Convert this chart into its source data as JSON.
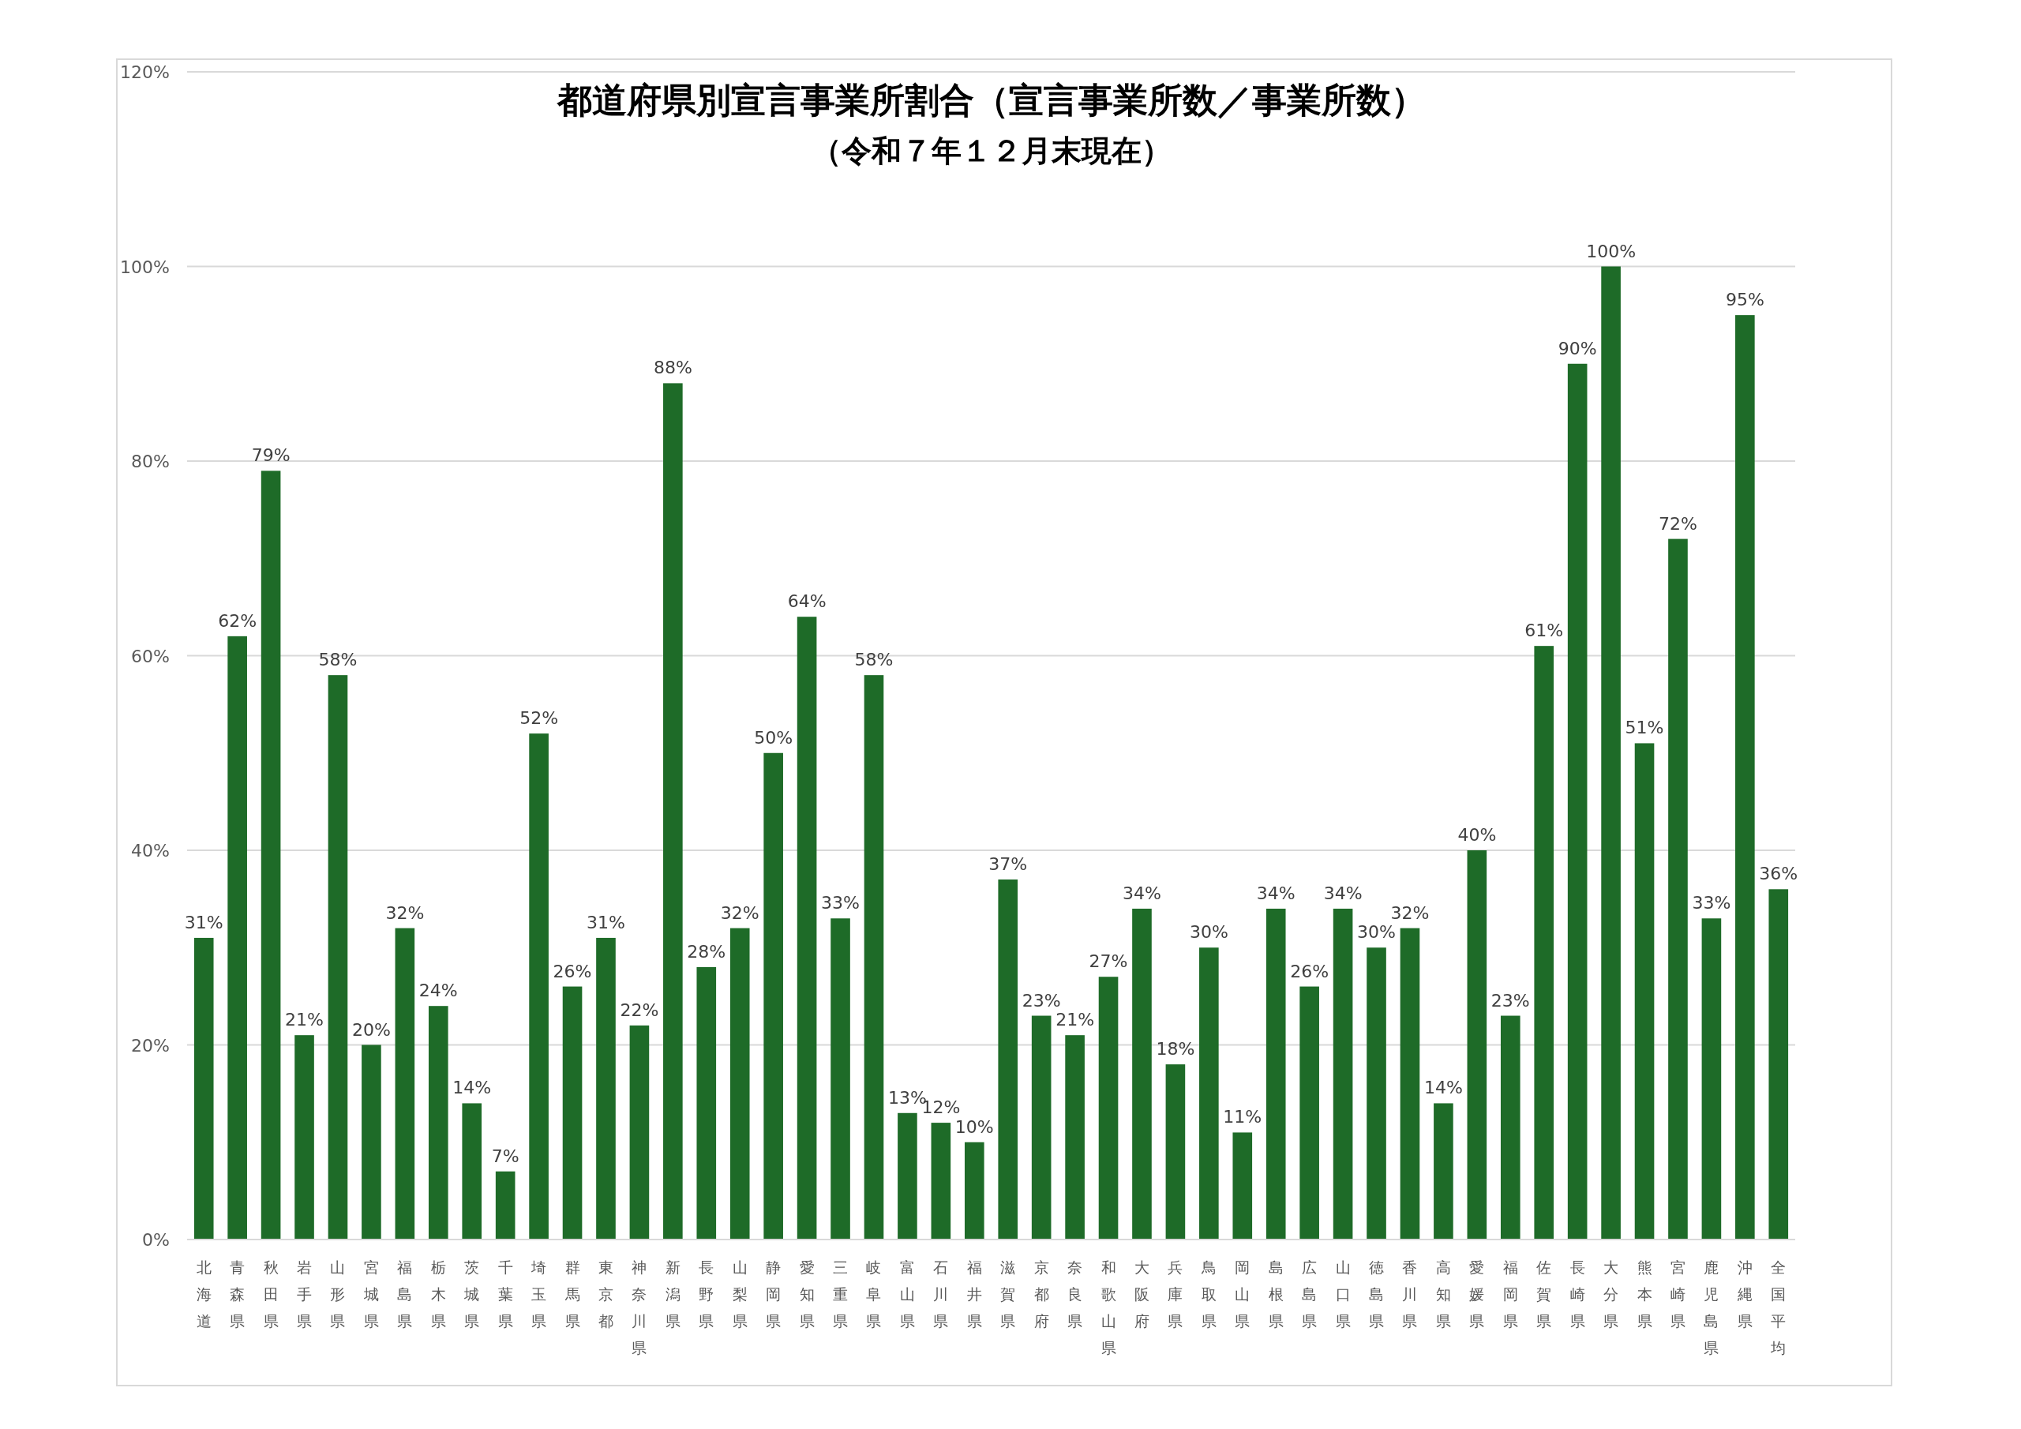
{
  "chart_data": {
    "type": "bar",
    "title": "都道府県別宣言事業所割合（宣言事業所数／事業所数）",
    "subtitle": "（令和７年１２月末現在）",
    "categories": [
      "北海道",
      "青森県",
      "秋田県",
      "岩手県",
      "山形県",
      "宮城県",
      "福島県",
      "栃木県",
      "茨城県",
      "千葉県",
      "埼玉県",
      "群馬県",
      "東京都",
      "神奈川県",
      "新潟県",
      "長野県",
      "山梨県",
      "静岡県",
      "愛知県",
      "三重県",
      "岐阜県",
      "富山県",
      "石川県",
      "福井県",
      "滋賀県",
      "京都府",
      "奈良県",
      "和歌山県",
      "大阪府",
      "兵庫県",
      "鳥取県",
      "岡山県",
      "島根県",
      "広島県",
      "山口県",
      "徳島県",
      "香川県",
      "高知県",
      "愛媛県",
      "福岡県",
      "佐賀県",
      "長崎県",
      "大分県",
      "熊本県",
      "宮崎県",
      "鹿児島県",
      "沖縄県",
      "全国平均"
    ],
    "values": [
      31,
      62,
      79,
      21,
      58,
      20,
      32,
      24,
      14,
      7,
      52,
      26,
      31,
      22,
      88,
      28,
      32,
      50,
      64,
      33,
      58,
      13,
      12,
      10,
      37,
      23,
      21,
      27,
      34,
      18,
      30,
      11,
      34,
      26,
      34,
      30,
      32,
      14,
      40,
      23,
      61,
      90,
      100,
      51,
      72,
      33,
      95,
      36
    ],
    "value_labels": [
      "31%",
      "62%",
      "79%",
      "21%",
      "58%",
      "20%",
      "32%",
      "24%",
      "14%",
      "7%",
      "52%",
      "26%",
      "31%",
      "22%",
      "88%",
      "28%",
      "32%",
      "50%",
      "64%",
      "33%",
      "58%",
      "13%",
      "12%",
      "10%",
      "37%",
      "23%",
      "21%",
      "27%",
      "34%",
      "18%",
      "30%",
      "11%",
      "34%",
      "26%",
      "34%",
      "30%",
      "32%",
      "14%",
      "40%",
      "23%",
      "61%",
      "90%",
      "100%",
      "51%",
      "72%",
      "33%",
      "95%",
      "36%"
    ],
    "color": "#1e6b28",
    "ylim": [
      0,
      120
    ],
    "yticks": [
      {
        "value": 0,
        "label": "0%"
      },
      {
        "value": 20,
        "label": "20%"
      },
      {
        "value": 40,
        "label": "40%"
      },
      {
        "value": 60,
        "label": "60%"
      },
      {
        "value": 80,
        "label": "80%"
      },
      {
        "value": 100,
        "label": "100%"
      },
      {
        "value": 120,
        "label": "120%"
      }
    ],
    "grid": "y"
  }
}
